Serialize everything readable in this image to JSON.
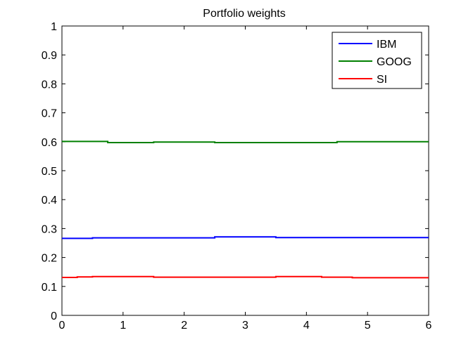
{
  "chart_data": {
    "type": "line",
    "title": "Portfolio weights",
    "xlabel": "",
    "ylabel": "",
    "xlim": [
      0,
      6
    ],
    "ylim": [
      0,
      1
    ],
    "xticks": [
      0,
      1,
      2,
      3,
      4,
      5,
      6
    ],
    "yticks": [
      0,
      0.1,
      0.2,
      0.3,
      0.4,
      0.5,
      0.6,
      0.7,
      0.8,
      0.9,
      1
    ],
    "ytick_labels": [
      "0",
      "0.1",
      "0.2",
      "0.3",
      "0.4",
      "0.5",
      "0.6",
      "0.7",
      "0.8",
      "0.9",
      "1"
    ],
    "grid": false,
    "legend_position": "top-right",
    "series": [
      {
        "name": "IBM",
        "color": "#0000ff",
        "x": [
          0,
          0.5,
          0.5,
          1.5,
          1.5,
          2.5,
          2.5,
          3.5,
          3.5,
          4.5,
          4.5,
          6
        ],
        "values": [
          0.266,
          0.266,
          0.268,
          0.268,
          0.268,
          0.268,
          0.271,
          0.271,
          0.269,
          0.269,
          0.269,
          0.269
        ]
      },
      {
        "name": "GOOG",
        "color": "#008000",
        "x": [
          0,
          0.75,
          0.75,
          1.5,
          1.5,
          2.5,
          2.5,
          3.5,
          3.5,
          4.5,
          4.5,
          6
        ],
        "values": [
          0.601,
          0.601,
          0.597,
          0.597,
          0.599,
          0.599,
          0.597,
          0.597,
          0.597,
          0.597,
          0.6,
          0.6
        ]
      },
      {
        "name": "SI",
        "color": "#ff0000",
        "x": [
          0,
          0.25,
          0.25,
          0.5,
          0.5,
          1.5,
          1.5,
          3.5,
          3.5,
          4.25,
          4.25,
          4.75,
          4.75,
          6
        ],
        "values": [
          0.131,
          0.131,
          0.133,
          0.133,
          0.134,
          0.134,
          0.132,
          0.132,
          0.134,
          0.134,
          0.132,
          0.132,
          0.13,
          0.13
        ]
      }
    ]
  }
}
